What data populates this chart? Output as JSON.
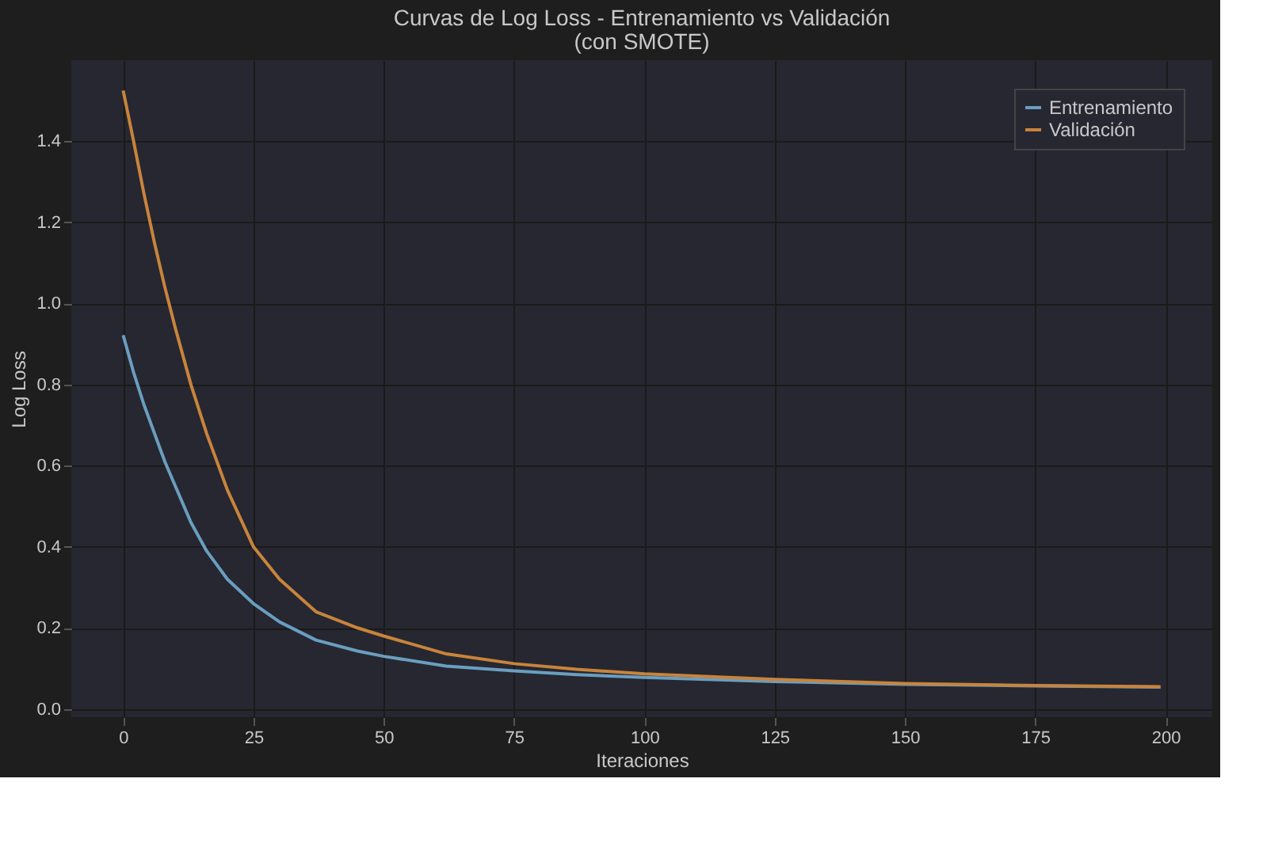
{
  "chart_data": {
    "type": "line",
    "title": "Curvas de Log Loss - Entrenamiento vs Validación",
    "subtitle": "(con SMOTE)",
    "xlabel": "Iteraciones",
    "ylabel": "Log Loss",
    "x": [
      0,
      2,
      4,
      6,
      8,
      10,
      13,
      16,
      20,
      25,
      30,
      37,
      45,
      50,
      62,
      75,
      87,
      100,
      125,
      150,
      175,
      199
    ],
    "series": [
      {
        "name": "Entrenamiento",
        "color": "#6a9ec0",
        "values": [
          0.922,
          0.83,
          0.75,
          0.68,
          0.61,
          0.55,
          0.46,
          0.39,
          0.32,
          0.26,
          0.215,
          0.17,
          0.143,
          0.13,
          0.106,
          0.094,
          0.085,
          0.078,
          0.068,
          0.061,
          0.057,
          0.054
        ]
      },
      {
        "name": "Validación",
        "color": "#c8843c",
        "values": [
          1.525,
          1.4,
          1.27,
          1.15,
          1.04,
          0.94,
          0.8,
          0.68,
          0.54,
          0.4,
          0.32,
          0.24,
          0.2,
          0.18,
          0.136,
          0.112,
          0.098,
          0.087,
          0.073,
          0.063,
          0.058,
          0.055
        ]
      }
    ],
    "xlim": [
      -9.95,
      208.95
    ],
    "ylim": [
      -0.02,
      1.6
    ],
    "xticks": [
      0,
      25,
      50,
      75,
      100,
      125,
      150,
      175,
      200
    ],
    "yticks": [
      {
        "value": 0,
        "label": "0.0"
      },
      {
        "value": 0.2,
        "label": "0.2"
      },
      {
        "value": 0.4,
        "label": "0.4"
      },
      {
        "value": 0.6,
        "label": "0.6"
      },
      {
        "value": 0.8,
        "label": "0.8"
      },
      {
        "value": 1.0,
        "label": "1.0"
      },
      {
        "value": 1.2,
        "label": "1.2"
      },
      {
        "value": 1.4,
        "label": "1.4"
      }
    ],
    "grid": true,
    "legend": "top right",
    "marker": "none",
    "line_style": "solid"
  }
}
